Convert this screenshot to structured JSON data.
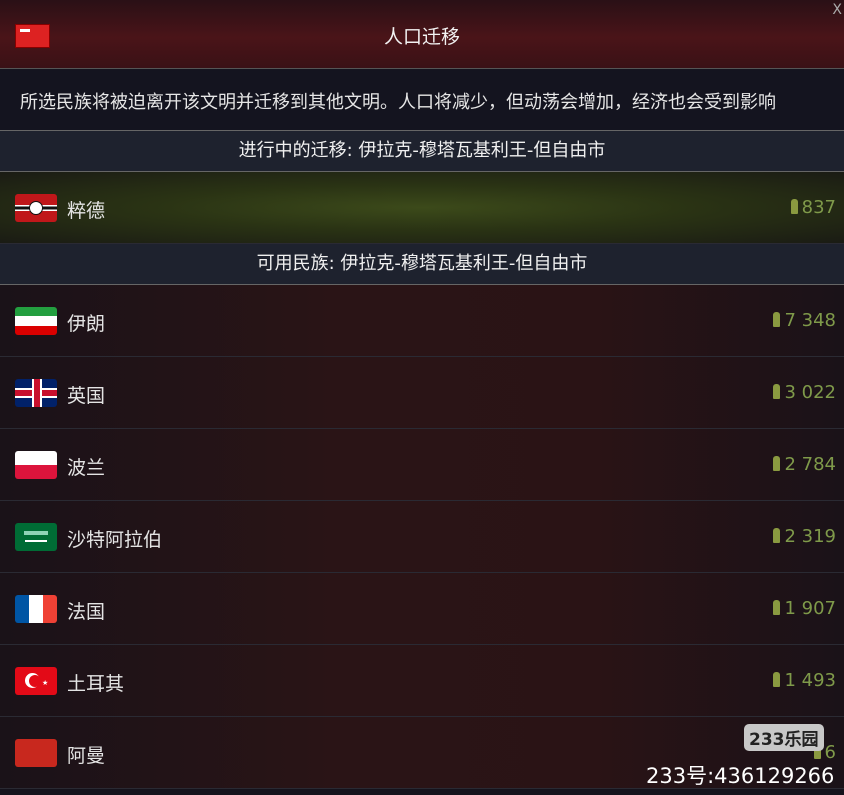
{
  "header": {
    "title": "人口迁移",
    "close": "X"
  },
  "description": "所选民族将被迫离开该文明并迁移到其他文明。人口将减少，但动荡会增加，经济也会受到影响",
  "in_progress": {
    "label": "进行中的迁移: 伊拉克-穆塔瓦基利王-但自由市",
    "items": [
      {
        "name": "粹德",
        "population": "837",
        "flag": "nazi-flag"
      }
    ]
  },
  "available": {
    "label": "可用民族: 伊拉克-穆塔瓦基利王-但自由市",
    "items": [
      {
        "name": "伊朗",
        "population": "7 348",
        "flag": "iran-flag"
      },
      {
        "name": "英国",
        "population": "3 022",
        "flag": "uk-flag"
      },
      {
        "name": "波兰",
        "population": "2 784",
        "flag": "poland-flag"
      },
      {
        "name": "沙特阿拉伯",
        "population": "2 319",
        "flag": "saudi-flag"
      },
      {
        "name": "法国",
        "population": "1 907",
        "flag": "france-flag"
      },
      {
        "name": "土耳其",
        "population": "1 493",
        "flag": "turkey-flag"
      },
      {
        "name": "阿曼",
        "population": "6",
        "flag": "oman-flag"
      }
    ]
  },
  "watermark": {
    "logo": "233乐园",
    "id": "233号:436129266"
  }
}
